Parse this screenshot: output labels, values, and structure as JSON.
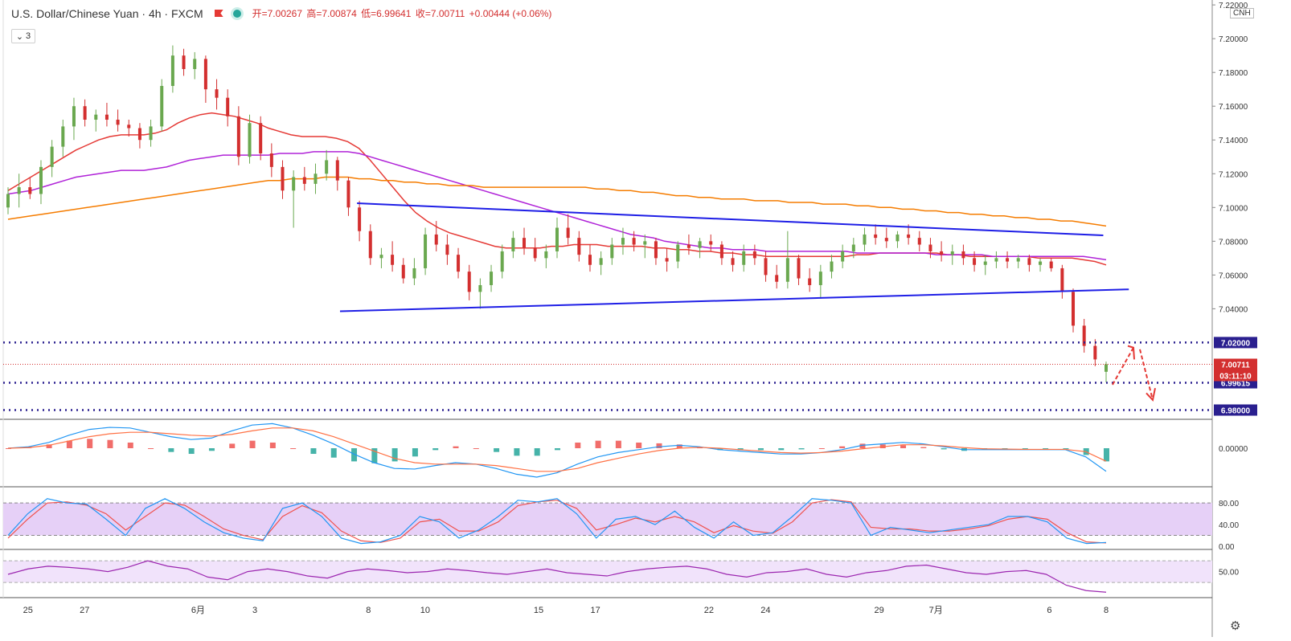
{
  "header": {
    "title": "U.S. Dollar/Chinese Yuan · 4h · FXCM",
    "open": "开=7.00267",
    "high": "高=7.00874",
    "low": "低=6.99641",
    "close": "收=7.00711",
    "change": "+0.00444 (+0.06%)",
    "indicator_count": "3",
    "currency_badge": "CNH"
  },
  "icons": {
    "flag": "flag-icon",
    "status": "status-dot-icon",
    "settings": "gear-icon",
    "chevron": "chevron-down-icon"
  },
  "colors": {
    "up": "#6aa84f",
    "down": "#d32f2f",
    "ma_red": "#e53935",
    "ma_purple": "#b023d8",
    "ma_orange": "#f57c00",
    "trendline": "#1e1ee6",
    "level": "#2a1f8f",
    "arrow": "#e53935",
    "macd_fast": "#2196f3",
    "macd_slow": "#ff7043",
    "stoch_k": "#2196f3",
    "stoch_d": "#ef5350",
    "rsi": "#9c27b0"
  },
  "chart_data": {
    "type": "candlestick",
    "symbol": "USDCNH",
    "timeframe": "4h",
    "y_axis": {
      "range": [
        6.975,
        7.221
      ],
      "ticks": [
        "7.22000",
        "7.20000",
        "7.18000",
        "7.16000",
        "7.14000",
        "7.12000",
        "7.10000",
        "7.08000",
        "7.06000",
        "7.04000"
      ]
    },
    "x_axis": {
      "labels": [
        "25",
        "27",
        "6月",
        "3",
        "8",
        "10",
        "15",
        "17",
        "22",
        "24",
        "29",
        "7月",
        "6",
        "8"
      ],
      "label_pos": [
        0.7,
        2.7,
        6.7,
        8.7,
        12.7,
        14.7,
        18.7,
        20.7,
        24.7,
        26.7,
        30.7,
        32.7,
        36.7,
        38.7
      ]
    },
    "candles": [
      [
        7.1,
        7.112,
        7.096,
        7.108
      ],
      [
        7.108,
        7.12,
        7.1,
        7.112
      ],
      [
        7.112,
        7.118,
        7.105,
        7.108
      ],
      [
        7.108,
        7.128,
        7.102,
        7.124
      ],
      [
        7.124,
        7.14,
        7.118,
        7.136
      ],
      [
        7.136,
        7.152,
        7.13,
        7.148
      ],
      [
        7.148,
        7.165,
        7.14,
        7.16
      ],
      [
        7.16,
        7.164,
        7.148,
        7.152
      ],
      [
        7.152,
        7.158,
        7.145,
        7.155
      ],
      [
        7.155,
        7.162,
        7.148,
        7.152
      ],
      [
        7.152,
        7.158,
        7.145,
        7.149
      ],
      [
        7.149,
        7.152,
        7.142,
        7.147
      ],
      [
        7.147,
        7.15,
        7.135,
        7.14
      ],
      [
        7.14,
        7.152,
        7.136,
        7.148
      ],
      [
        7.148,
        7.176,
        7.145,
        7.172
      ],
      [
        7.172,
        7.196,
        7.168,
        7.19
      ],
      [
        7.19,
        7.194,
        7.178,
        7.182
      ],
      [
        7.182,
        7.192,
        7.176,
        7.188
      ],
      [
        7.188,
        7.19,
        7.162,
        7.17
      ],
      [
        7.17,
        7.176,
        7.158,
        7.165
      ],
      [
        7.165,
        7.17,
        7.148,
        7.154
      ],
      [
        7.154,
        7.16,
        7.125,
        7.13
      ],
      [
        7.13,
        7.155,
        7.126,
        7.15
      ],
      [
        7.15,
        7.154,
        7.128,
        7.132
      ],
      [
        7.132,
        7.138,
        7.118,
        7.124
      ],
      [
        7.124,
        7.128,
        7.105,
        7.11
      ],
      [
        7.11,
        7.122,
        7.088,
        7.118
      ],
      [
        7.118,
        7.124,
        7.11,
        7.114
      ],
      [
        7.114,
        7.126,
        7.108,
        7.12
      ],
      [
        7.12,
        7.134,
        7.116,
        7.128
      ],
      [
        7.128,
        7.13,
        7.11,
        7.116
      ],
      [
        7.116,
        7.118,
        7.095,
        7.1
      ],
      [
        7.1,
        7.104,
        7.08,
        7.086
      ],
      [
        7.086,
        7.09,
        7.066,
        7.07
      ],
      [
        7.07,
        7.076,
        7.064,
        7.072
      ],
      [
        7.072,
        7.08,
        7.062,
        7.066
      ],
      [
        7.066,
        7.07,
        7.055,
        7.058
      ],
      [
        7.058,
        7.07,
        7.054,
        7.064
      ],
      [
        7.064,
        7.088,
        7.06,
        7.084
      ],
      [
        7.084,
        7.092,
        7.074,
        7.078
      ],
      [
        7.078,
        7.084,
        7.066,
        7.072
      ],
      [
        7.072,
        7.076,
        7.058,
        7.062
      ],
      [
        7.062,
        7.066,
        7.045,
        7.05
      ],
      [
        7.05,
        7.058,
        7.04,
        7.054
      ],
      [
        7.054,
        7.066,
        7.05,
        7.062
      ],
      [
        7.062,
        7.078,
        7.058,
        7.074
      ],
      [
        7.074,
        7.086,
        7.07,
        7.082
      ],
      [
        7.082,
        7.088,
        7.072,
        7.076
      ],
      [
        7.076,
        7.082,
        7.068,
        7.07
      ],
      [
        7.07,
        7.078,
        7.064,
        7.074
      ],
      [
        7.074,
        7.094,
        7.07,
        7.088
      ],
      [
        7.088,
        7.096,
        7.078,
        7.082
      ],
      [
        7.082,
        7.086,
        7.068,
        7.072
      ],
      [
        7.072,
        7.078,
        7.062,
        7.066
      ],
      [
        7.066,
        7.074,
        7.06,
        7.07
      ],
      [
        7.07,
        7.082,
        7.066,
        7.078
      ],
      [
        7.078,
        7.088,
        7.072,
        7.082
      ],
      [
        7.082,
        7.086,
        7.074,
        7.078
      ],
      [
        7.078,
        7.084,
        7.07,
        7.08
      ],
      [
        7.08,
        7.082,
        7.066,
        7.07
      ],
      [
        7.07,
        7.076,
        7.062,
        7.068
      ],
      [
        7.068,
        7.08,
        7.064,
        7.078
      ],
      [
        7.078,
        7.084,
        7.072,
        7.076
      ],
      [
        7.076,
        7.082,
        7.07,
        7.08
      ],
      [
        7.08,
        7.084,
        7.074,
        7.078
      ],
      [
        7.078,
        7.08,
        7.066,
        7.07
      ],
      [
        7.07,
        7.074,
        7.062,
        7.066
      ],
      [
        7.066,
        7.078,
        7.062,
        7.074
      ],
      [
        7.074,
        7.078,
        7.066,
        7.07
      ],
      [
        7.07,
        7.074,
        7.056,
        7.06
      ],
      [
        7.06,
        7.066,
        7.052,
        7.056
      ],
      [
        7.056,
        7.086,
        7.052,
        7.07
      ],
      [
        7.07,
        7.072,
        7.054,
        7.058
      ],
      [
        7.058,
        7.064,
        7.05,
        7.054
      ],
      [
        7.054,
        7.066,
        7.046,
        7.062
      ],
      [
        7.062,
        7.072,
        7.058,
        7.068
      ],
      [
        7.068,
        7.078,
        7.064,
        7.074
      ],
      [
        7.074,
        7.082,
        7.07,
        7.078
      ],
      [
        7.078,
        7.088,
        7.074,
        7.084
      ],
      [
        7.084,
        7.09,
        7.078,
        7.082
      ],
      [
        7.082,
        7.088,
        7.076,
        7.08
      ],
      [
        7.08,
        7.086,
        7.076,
        7.084
      ],
      [
        7.084,
        7.09,
        7.078,
        7.082
      ],
      [
        7.082,
        7.086,
        7.074,
        7.078
      ],
      [
        7.078,
        7.082,
        7.07,
        7.074
      ],
      [
        7.074,
        7.08,
        7.068,
        7.072
      ],
      [
        7.072,
        7.078,
        7.066,
        7.074
      ],
      [
        7.074,
        7.078,
        7.066,
        7.07
      ],
      [
        7.07,
        7.074,
        7.062,
        7.066
      ],
      [
        7.066,
        7.072,
        7.06,
        7.068
      ],
      [
        7.068,
        7.074,
        7.064,
        7.07
      ],
      [
        7.07,
        7.074,
        7.064,
        7.068
      ],
      [
        7.068,
        7.072,
        7.064,
        7.07
      ],
      [
        7.07,
        7.072,
        7.062,
        7.066
      ],
      [
        7.066,
        7.07,
        7.062,
        7.068
      ],
      [
        7.068,
        7.07,
        7.062,
        7.064
      ],
      [
        7.064,
        7.066,
        7.046,
        7.05
      ],
      [
        7.05,
        7.052,
        7.026,
        7.03
      ],
      [
        7.03,
        7.034,
        7.014,
        7.018
      ],
      [
        7.018,
        7.022,
        7.006,
        7.01
      ],
      [
        7.00267,
        7.00874,
        6.99641,
        7.00711
      ]
    ],
    "moving_averages": [
      {
        "color": "red",
        "values": [
          7.11,
          7.114,
          7.118,
          7.122,
          7.126,
          7.13,
          7.134,
          7.137,
          7.14,
          7.142,
          7.143,
          7.143,
          7.143,
          7.144,
          7.146,
          7.15,
          7.153,
          7.155,
          7.156,
          7.155,
          7.154,
          7.152,
          7.15,
          7.147,
          7.145,
          7.143,
          7.142,
          7.142,
          7.142,
          7.141,
          7.139,
          7.135,
          7.128,
          7.12,
          7.112,
          7.104,
          7.097,
          7.092,
          7.088,
          7.085,
          7.083,
          7.081,
          7.079,
          7.077,
          7.076,
          7.076,
          7.076,
          7.076,
          7.077,
          7.077,
          7.078,
          7.078,
          7.078,
          7.077,
          7.077,
          7.077,
          7.077,
          7.076,
          7.076,
          7.075,
          7.075,
          7.074,
          7.074,
          7.073,
          7.073,
          7.072,
          7.072,
          7.071,
          7.071,
          7.071,
          7.071,
          7.071,
          7.071,
          7.071,
          7.071,
          7.072,
          7.072,
          7.073,
          7.073,
          7.073,
          7.073,
          7.073,
          7.073,
          7.072,
          7.072,
          7.071,
          7.071,
          7.071,
          7.071,
          7.071,
          7.071,
          7.07,
          7.07,
          7.07,
          7.07,
          7.069,
          7.068,
          7.066
        ]
      },
      {
        "color": "purple",
        "values": [
          7.108,
          7.109,
          7.11,
          7.112,
          7.114,
          7.116,
          7.118,
          7.119,
          7.12,
          7.121,
          7.122,
          7.122,
          7.122,
          7.123,
          7.124,
          7.126,
          7.128,
          7.129,
          7.13,
          7.131,
          7.131,
          7.131,
          7.131,
          7.131,
          7.132,
          7.132,
          7.132,
          7.133,
          7.133,
          7.133,
          7.133,
          7.132,
          7.13,
          7.128,
          7.126,
          7.124,
          7.122,
          7.12,
          7.118,
          7.116,
          7.114,
          7.112,
          7.11,
          7.108,
          7.106,
          7.104,
          7.102,
          7.1,
          7.098,
          7.096,
          7.094,
          7.092,
          7.09,
          7.088,
          7.086,
          7.084,
          7.083,
          7.082,
          7.08,
          7.079,
          7.078,
          7.077,
          7.076,
          7.076,
          7.075,
          7.075,
          7.075,
          7.074,
          7.074,
          7.074,
          7.074,
          7.074,
          7.074,
          7.074,
          7.074,
          7.073,
          7.073,
          7.073,
          7.073,
          7.073,
          7.073,
          7.073,
          7.072,
          7.072,
          7.072,
          7.072,
          7.072,
          7.071,
          7.071,
          7.071,
          7.071,
          7.071,
          7.071,
          7.071,
          7.071,
          7.071,
          7.07,
          7.069
        ]
      },
      {
        "color": "orange",
        "values": [
          7.093,
          7.094,
          7.095,
          7.096,
          7.097,
          7.098,
          7.099,
          7.1,
          7.101,
          7.102,
          7.103,
          7.104,
          7.105,
          7.106,
          7.107,
          7.108,
          7.109,
          7.11,
          7.111,
          7.112,
          7.113,
          7.114,
          7.115,
          7.116,
          7.116,
          7.117,
          7.117,
          7.117,
          7.118,
          7.118,
          7.118,
          7.117,
          7.117,
          7.116,
          7.116,
          7.115,
          7.115,
          7.114,
          7.114,
          7.113,
          7.113,
          7.113,
          7.112,
          7.112,
          7.112,
          7.112,
          7.112,
          7.112,
          7.112,
          7.112,
          7.112,
          7.112,
          7.111,
          7.111,
          7.11,
          7.11,
          7.109,
          7.109,
          7.108,
          7.107,
          7.107,
          7.106,
          7.106,
          7.105,
          7.105,
          7.105,
          7.104,
          7.104,
          7.104,
          7.103,
          7.103,
          7.103,
          7.102,
          7.102,
          7.102,
          7.101,
          7.101,
          7.1,
          7.1,
          7.099,
          7.099,
          7.098,
          7.098,
          7.097,
          7.097,
          7.096,
          7.096,
          7.095,
          7.095,
          7.094,
          7.094,
          7.093,
          7.093,
          7.092,
          7.092,
          7.091,
          7.09,
          7.089
        ]
      }
    ],
    "trendlines": [
      {
        "from": [
          12.3,
          7.1025
        ],
        "to": [
          38.6,
          7.0835
        ]
      },
      {
        "from": [
          11.7,
          7.0385
        ],
        "to": [
          39.5,
          7.0515
        ]
      }
    ],
    "levels": [
      {
        "value": 7.02,
        "label": "7.02000"
      },
      {
        "value": 6.99615,
        "label": "6.99615"
      },
      {
        "value": 6.98,
        "label": "6.98000"
      }
    ],
    "last_price": {
      "value": 7.00711,
      "label": "7.00711",
      "countdown": "03:11:10"
    },
    "macd": {
      "zero_label": "0.00000",
      "range": [
        -1,
        1
      ],
      "fast": [
        0.0,
        0.05,
        0.2,
        0.45,
        0.65,
        0.72,
        0.7,
        0.55,
        0.4,
        0.3,
        0.35,
        0.6,
        0.8,
        0.85,
        0.7,
        0.45,
        0.15,
        -0.2,
        -0.5,
        -0.7,
        -0.72,
        -0.6,
        -0.5,
        -0.55,
        -0.7,
        -0.9,
        -1.0,
        -0.85,
        -0.55,
        -0.3,
        -0.15,
        -0.05,
        0.05,
        0.1,
        0.05,
        -0.05,
        -0.1,
        -0.15,
        -0.2,
        -0.2,
        -0.15,
        -0.05,
        0.1,
        0.15,
        0.2,
        0.15,
        0.05,
        -0.05,
        -0.05,
        -0.05,
        -0.05,
        -0.05,
        -0.05,
        -0.3,
        -0.8
      ],
      "slow": [
        0.0,
        0.02,
        0.1,
        0.25,
        0.4,
        0.5,
        0.55,
        0.55,
        0.5,
        0.45,
        0.42,
        0.48,
        0.6,
        0.7,
        0.7,
        0.6,
        0.4,
        0.15,
        -0.1,
        -0.35,
        -0.5,
        -0.55,
        -0.55,
        -0.55,
        -0.6,
        -0.7,
        -0.8,
        -0.8,
        -0.7,
        -0.5,
        -0.35,
        -0.2,
        -0.08,
        0.0,
        0.03,
        0.0,
        -0.05,
        -0.1,
        -0.15,
        -0.17,
        -0.15,
        -0.1,
        -0.02,
        0.05,
        0.12,
        0.12,
        0.08,
        0.02,
        -0.02,
        -0.03,
        -0.04,
        -0.04,
        -0.04,
        -0.12,
        -0.45
      ]
    },
    "stochastic": {
      "ticks": [
        "80.00",
        "40.00",
        "0.00"
      ],
      "k": [
        20,
        60,
        88,
        80,
        78,
        50,
        20,
        70,
        88,
        70,
        45,
        25,
        15,
        10,
        70,
        80,
        55,
        15,
        5,
        8,
        20,
        55,
        45,
        15,
        30,
        55,
        85,
        82,
        88,
        60,
        15,
        50,
        55,
        40,
        65,
        35,
        15,
        45,
        20,
        25,
        55,
        88,
        85,
        80,
        20,
        35,
        30,
        25,
        30,
        35,
        40,
        55,
        55,
        45,
        15,
        5,
        7
      ],
      "d": [
        15,
        50,
        80,
        82,
        76,
        60,
        30,
        55,
        80,
        76,
        55,
        32,
        20,
        12,
        55,
        75,
        62,
        28,
        10,
        7,
        15,
        45,
        50,
        28,
        28,
        45,
        75,
        82,
        85,
        70,
        30,
        40,
        52,
        45,
        55,
        45,
        25,
        38,
        28,
        24,
        45,
        80,
        86,
        82,
        35,
        32,
        32,
        28,
        28,
        32,
        38,
        50,
        55,
        50,
        25,
        8,
        6
      ]
    },
    "rsi": {
      "ticks": [
        "50.00"
      ],
      "values": [
        45,
        55,
        60,
        58,
        55,
        50,
        58,
        70,
        60,
        55,
        40,
        35,
        50,
        55,
        50,
        42,
        38,
        50,
        55,
        52,
        48,
        50,
        55,
        52,
        48,
        45,
        50,
        55,
        48,
        45,
        42,
        50,
        55,
        58,
        60,
        55,
        45,
        40,
        48,
        50,
        55,
        45,
        40,
        48,
        52,
        60,
        62,
        55,
        48,
        45,
        50,
        52,
        45,
        25,
        15,
        12
      ]
    },
    "annotations": {
      "arrows": "up-then-down projection"
    }
  }
}
